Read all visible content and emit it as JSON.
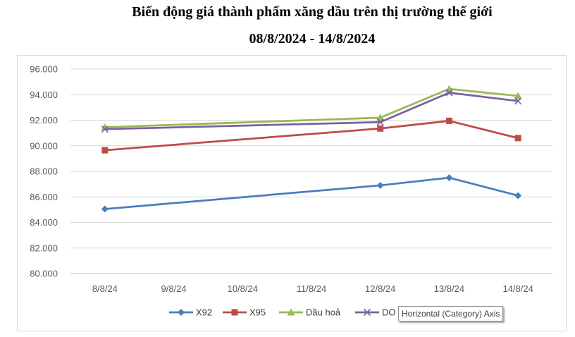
{
  "title_line1": "Biến động giá thành phẩm xăng dầu trên thị trường thế giới",
  "title_line2": "08/8/2024 - 14/8/2024",
  "tooltip": "Horizontal (Category) Axis",
  "chart_data": {
    "type": "line",
    "title": "Biến động giá thành phẩm xăng dầu trên thị trường thế giới 08/8/2024 - 14/8/2024",
    "categories": [
      "8/8/24",
      "9/8/24",
      "10/8/24",
      "11/8/24",
      "12/8/24",
      "13/8/24",
      "14/8/24"
    ],
    "ylim": [
      80000,
      96000
    ],
    "yticks": [
      80000,
      82000,
      84000,
      86000,
      88000,
      90000,
      92000,
      94000,
      96000
    ],
    "ytick_labels": [
      "80.000",
      "82.000",
      "84.000",
      "86.000",
      "88.000",
      "90.000",
      "92.000",
      "94.000",
      "96.000"
    ],
    "grid": true,
    "legend": "bottom",
    "series": [
      {
        "name": "X92",
        "color": "#4a7ebb",
        "marker": "diamond",
        "values": [
          85050,
          null,
          null,
          null,
          86900,
          87500,
          86100
        ]
      },
      {
        "name": "X95",
        "color": "#be4b48",
        "marker": "square",
        "values": [
          89650,
          null,
          null,
          null,
          91350,
          91950,
          90600
        ]
      },
      {
        "name": "Dầu hoả",
        "color": "#98b954",
        "marker": "triangle",
        "values": [
          91450,
          null,
          null,
          null,
          92200,
          94450,
          93900
        ]
      },
      {
        "name": "DO",
        "color": "#7d5fa0",
        "marker": "x",
        "values": [
          91300,
          null,
          null,
          null,
          91850,
          94150,
          93500
        ]
      }
    ]
  }
}
